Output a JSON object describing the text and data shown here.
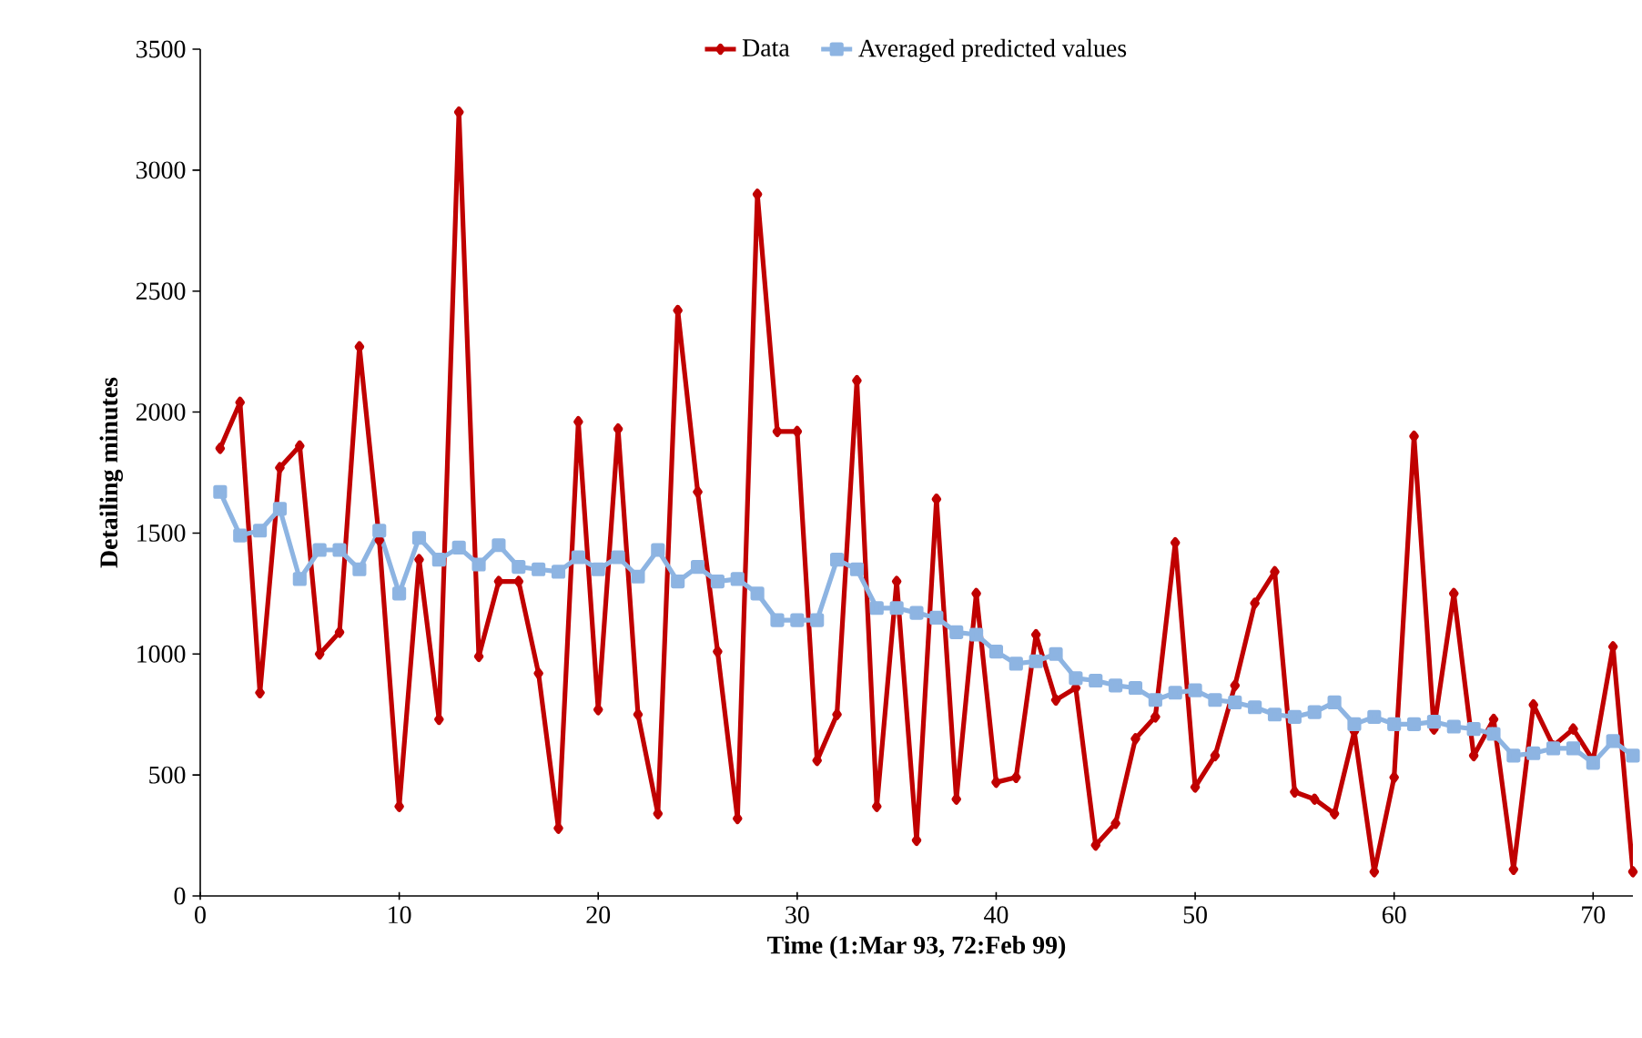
{
  "chart_data": {
    "type": "line",
    "xlabel": "Time (1:Mar 93, 72:Feb 99)",
    "ylabel": "Detailing minutes",
    "x": [
      1,
      2,
      3,
      4,
      5,
      6,
      7,
      8,
      9,
      10,
      11,
      12,
      13,
      14,
      15,
      16,
      17,
      18,
      19,
      20,
      21,
      22,
      23,
      24,
      25,
      26,
      27,
      28,
      29,
      30,
      31,
      32,
      33,
      34,
      35,
      36,
      37,
      38,
      39,
      40,
      41,
      42,
      43,
      44,
      45,
      46,
      47,
      48,
      49,
      50,
      51,
      52,
      53,
      54,
      55,
      56,
      57,
      58,
      59,
      60,
      61,
      62,
      63,
      64,
      65,
      66,
      67,
      68,
      69,
      70,
      71,
      72
    ],
    "series": [
      {
        "name": "Data",
        "color": "#c00000",
        "marker": "diamond",
        "values": [
          1850,
          2040,
          840,
          1770,
          1860,
          1000,
          1090,
          2270,
          1470,
          370,
          1390,
          730,
          3240,
          990,
          1300,
          1300,
          920,
          280,
          1960,
          770,
          1930,
          750,
          340,
          2420,
          1670,
          1010,
          320,
          2900,
          1920,
          1920,
          560,
          750,
          2130,
          370,
          1300,
          230,
          1640,
          400,
          1250,
          470,
          490,
          1080,
          810,
          860,
          210,
          300,
          650,
          740,
          1460,
          450,
          580,
          870,
          1210,
          1340,
          430,
          400,
          340,
          680,
          100,
          490,
          1900,
          690,
          1250,
          580,
          730,
          110,
          790,
          620,
          690,
          560,
          1030,
          100
        ]
      },
      {
        "name": "Averaged predicted values",
        "color": "#8db4e2",
        "marker": "square",
        "values": [
          1670,
          1490,
          1510,
          1600,
          1310,
          1430,
          1430,
          1350,
          1510,
          1250,
          1480,
          1390,
          1440,
          1370,
          1450,
          1360,
          1350,
          1340,
          1400,
          1350,
          1400,
          1320,
          1430,
          1300,
          1360,
          1300,
          1310,
          1250,
          1140,
          1140,
          1140,
          1390,
          1350,
          1190,
          1190,
          1170,
          1150,
          1090,
          1080,
          1010,
          960,
          970,
          1000,
          900,
          890,
          870,
          860,
          810,
          840,
          850,
          810,
          800,
          780,
          750,
          740,
          760,
          800,
          710,
          740,
          710,
          710,
          720,
          700,
          690,
          670,
          580,
          590,
          610,
          610,
          550,
          640,
          580
        ]
      }
    ],
    "xlim": [
      0,
      72
    ],
    "xticks": [
      0,
      10,
      20,
      30,
      40,
      50,
      60,
      70
    ],
    "ylim": [
      0,
      3500
    ],
    "yticks": [
      0,
      500,
      1000,
      1500,
      2000,
      2500,
      3000,
      3500
    ],
    "grid": false,
    "legend": "top"
  }
}
